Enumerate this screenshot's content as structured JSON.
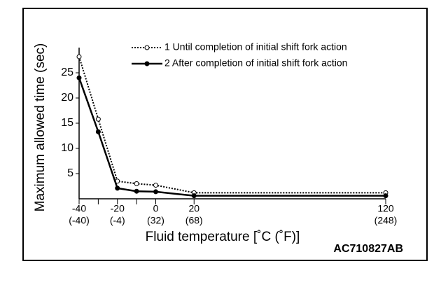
{
  "chart_data": {
    "type": "line",
    "ylabel": "Maximum allowed time (sec)",
    "xlabel": "Fluid temperature [˚C (˚F)]",
    "code": "AC710827AB",
    "x": [
      -40,
      -30,
      -20,
      -10,
      0,
      20,
      120
    ],
    "series": [
      {
        "name": "1 Until completion of initial shift fork action",
        "color": "#000000",
        "dashed": true,
        "marker": "open",
        "values": [
          28.2,
          15.8,
          3.5,
          3.0,
          2.7,
          1.2,
          1.2
        ]
      },
      {
        "name": "2 After completion of initial shift fork action",
        "color": "#000000",
        "dashed": false,
        "marker": "filled",
        "values": [
          24,
          13.3,
          2.1,
          1.5,
          1.4,
          0.6,
          0.6
        ]
      }
    ],
    "xlim": [
      -40,
      120
    ],
    "ylim": [
      0,
      30
    ],
    "xticks": [
      {
        "value": -40,
        "label": "-40",
        "label_f": "(-40)"
      },
      {
        "value": -30,
        "label": null
      },
      {
        "value": -20,
        "label": "-20",
        "label_f": "(-4)"
      },
      {
        "value": -10,
        "label": null
      },
      {
        "value": 0,
        "label": "0",
        "label_f": "(32)"
      },
      {
        "value": 20,
        "label": "20",
        "label_f": "(68)"
      },
      {
        "value": 120,
        "label": "120",
        "label_f": "(248)"
      }
    ],
    "yticks": [
      5,
      10,
      15,
      20,
      25
    ]
  }
}
